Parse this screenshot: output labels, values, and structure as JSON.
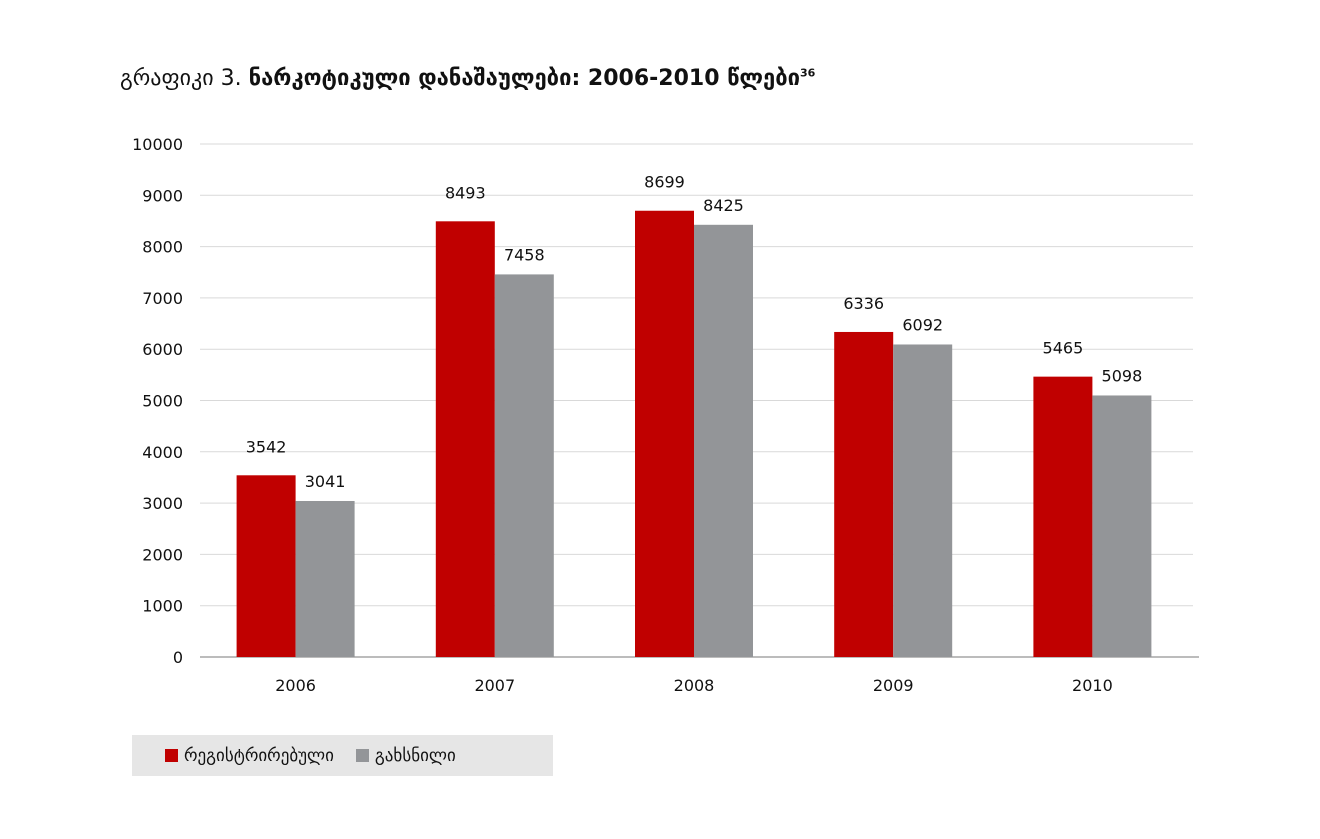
{
  "title": {
    "prefix": "გრაფიკი 3.",
    "main": "ნარკოტიკული დანაშაულები: 2006-2010 წლები",
    "footnote": "36"
  },
  "chart_data": {
    "type": "bar",
    "categories": [
      "2006",
      "2007",
      "2008",
      "2009",
      "2010"
    ],
    "series": [
      {
        "name": "რეგისტრირებული",
        "values": [
          3542,
          8493,
          8699,
          6336,
          5465
        ],
        "color": "#c00000"
      },
      {
        "name": "გახსნილი",
        "values": [
          3041,
          7458,
          8425,
          6092,
          5098
        ],
        "color": "#939598"
      }
    ],
    "ylim": [
      0,
      10000
    ],
    "yticks": [
      0,
      1000,
      2000,
      3000,
      4000,
      5000,
      6000,
      7000,
      8000,
      9000,
      10000
    ],
    "grid": true,
    "data_labels": true,
    "legend_placement": "bottom-left"
  }
}
